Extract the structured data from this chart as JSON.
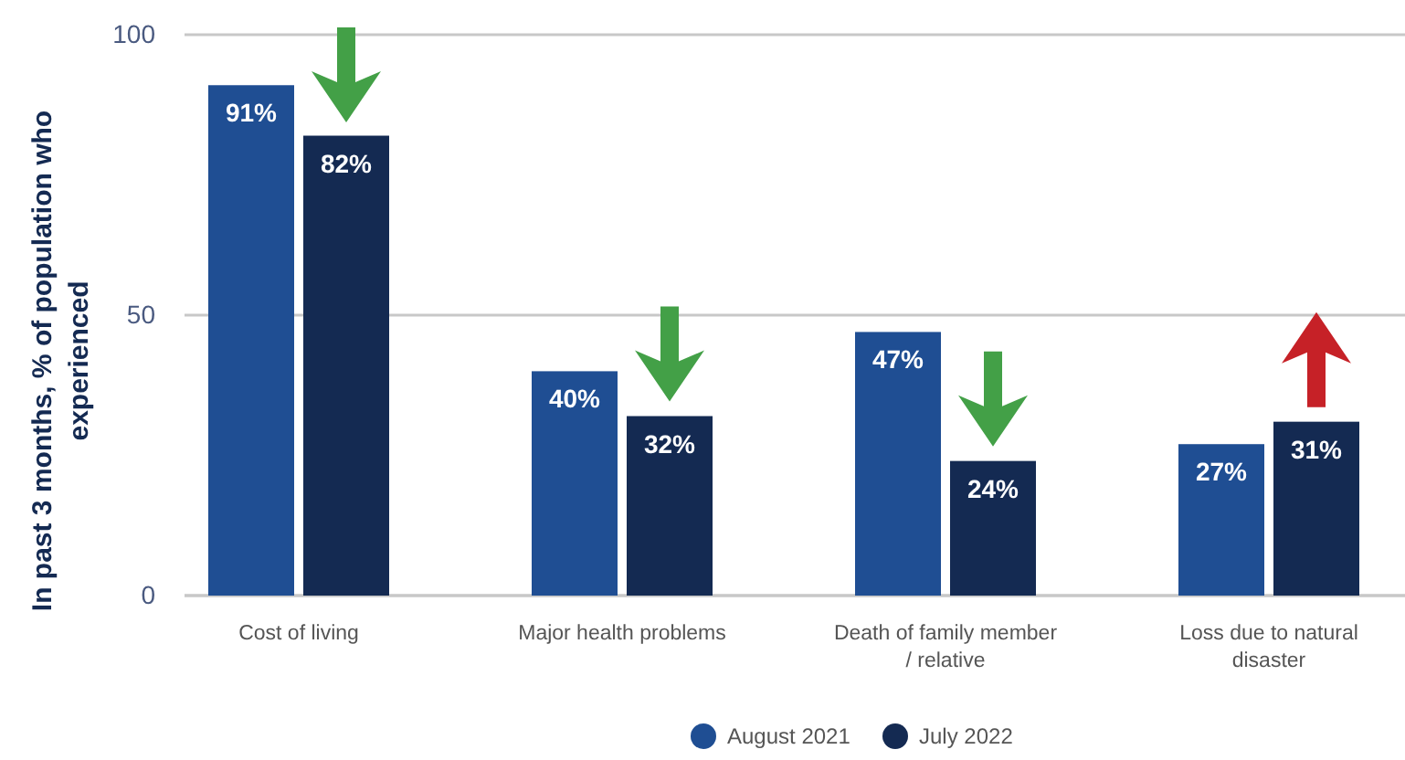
{
  "chart_data": {
    "type": "bar",
    "ylabel": "In past 3 months, % of population who experienced",
    "categories": [
      "Cost of living",
      "Major health problems",
      "Death of family member / relative",
      "Loss due to natural disaster"
    ],
    "series": [
      {
        "name": "August 2021",
        "color": "#1f4e93",
        "values": [
          91,
          40,
          47,
          27
        ],
        "value_labels": [
          "91%",
          "40%",
          "47%",
          "27%"
        ]
      },
      {
        "name": "July 2022",
        "color": "#142a52",
        "values": [
          82,
          32,
          24,
          31
        ],
        "value_labels": [
          "82%",
          "32%",
          "24%",
          "31%"
        ]
      }
    ],
    "ylim": [
      0,
      100
    ],
    "yticks": [
      0,
      50,
      100
    ],
    "grid": "y",
    "legend": "bottom"
  }
}
